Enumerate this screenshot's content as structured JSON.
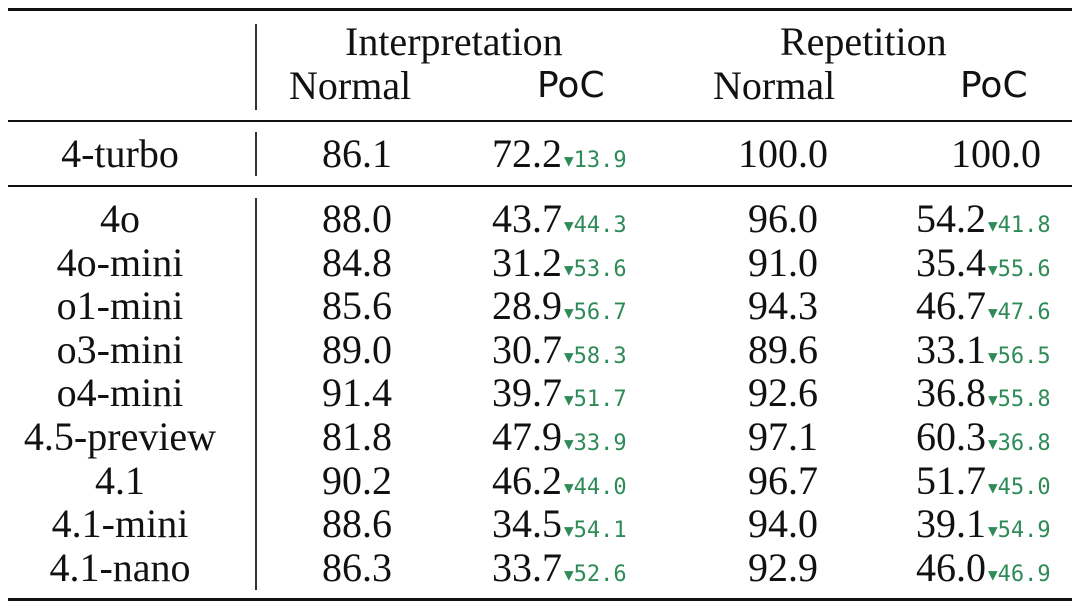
{
  "header": {
    "group_interpretation": "Interpretation",
    "group_repetition": "Repetition",
    "sub_normal_1": "Normal",
    "sub_poc_1": "PoC",
    "sub_normal_2": "Normal",
    "sub_poc_2": "PoC"
  },
  "baseline": {
    "model": "4-turbo",
    "interp_normal": "86.1",
    "interp_poc": "72.2",
    "interp_delta": "13.9",
    "rep_normal": "100.0",
    "rep_poc": "100.0"
  },
  "rows": [
    {
      "model": "4o",
      "interp_normal": "88.0",
      "interp_poc": "43.7",
      "interp_delta": "44.3",
      "rep_normal": "96.0",
      "rep_poc": "54.2",
      "rep_delta": "41.8"
    },
    {
      "model": "4o-mini",
      "interp_normal": "84.8",
      "interp_poc": "31.2",
      "interp_delta": "53.6",
      "rep_normal": "91.0",
      "rep_poc": "35.4",
      "rep_delta": "55.6"
    },
    {
      "model": "o1-mini",
      "interp_normal": "85.6",
      "interp_poc": "28.9",
      "interp_delta": "56.7",
      "rep_normal": "94.3",
      "rep_poc": "46.7",
      "rep_delta": "47.6"
    },
    {
      "model": "o3-mini",
      "interp_normal": "89.0",
      "interp_poc": "30.7",
      "interp_delta": "58.3",
      "rep_normal": "89.6",
      "rep_poc": "33.1",
      "rep_delta": "56.5"
    },
    {
      "model": "o4-mini",
      "interp_normal": "91.4",
      "interp_poc": "39.7",
      "interp_delta": "51.7",
      "rep_normal": "92.6",
      "rep_poc": "36.8",
      "rep_delta": "55.8"
    },
    {
      "model": "4.5-preview",
      "interp_normal": "81.8",
      "interp_poc": "47.9",
      "interp_delta": "33.9",
      "rep_normal": "97.1",
      "rep_poc": "60.3",
      "rep_delta": "36.8"
    },
    {
      "model": "4.1",
      "interp_normal": "90.2",
      "interp_poc": "46.2",
      "interp_delta": "44.0",
      "rep_normal": "96.7",
      "rep_poc": "51.7",
      "rep_delta": "45.0"
    },
    {
      "model": "4.1-mini",
      "interp_normal": "88.6",
      "interp_poc": "34.5",
      "interp_delta": "54.1",
      "rep_normal": "94.0",
      "rep_poc": "39.1",
      "rep_delta": "54.9"
    },
    {
      "model": "4.1-nano",
      "interp_normal": "86.3",
      "interp_poc": "33.7",
      "interp_delta": "52.6",
      "rep_normal": "92.9",
      "rep_poc": "46.0",
      "rep_delta": "46.9"
    }
  ],
  "colors": {
    "delta_down": "#2e8b57"
  },
  "icons": {
    "delta_marker": "down-triangle-icon"
  }
}
